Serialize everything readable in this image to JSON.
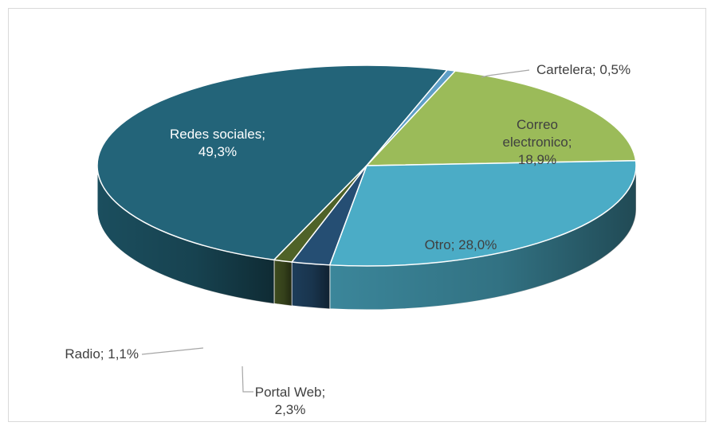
{
  "chart_data": {
    "type": "pie",
    "title": "",
    "categories": [
      "Redes sociales",
      "Cartelera",
      "Correo electronico",
      "Otro",
      "Portal Web",
      "Radio"
    ],
    "values": [
      49.3,
      0.5,
      18.9,
      28.0,
      2.3,
      1.1
    ],
    "unit": "%",
    "colors": [
      "#236479",
      "#5f9fc7",
      "#9bbb59",
      "#4bacc6",
      "#254e73",
      "#4f6228"
    ],
    "labels": [
      {
        "lines": [
          "Redes sociales;",
          "49,3%"
        ]
      },
      {
        "lines": [
          "Cartelera; 0,5%"
        ]
      },
      {
        "lines": [
          "Correo",
          "electronico;",
          "18,9%"
        ]
      },
      {
        "lines": [
          "Otro; 28,0%"
        ]
      },
      {
        "lines": [
          "Portal Web;",
          "2,3%"
        ]
      },
      {
        "lines": [
          "Radio; 1,1%"
        ]
      }
    ],
    "legend": "none",
    "style": "3d"
  }
}
